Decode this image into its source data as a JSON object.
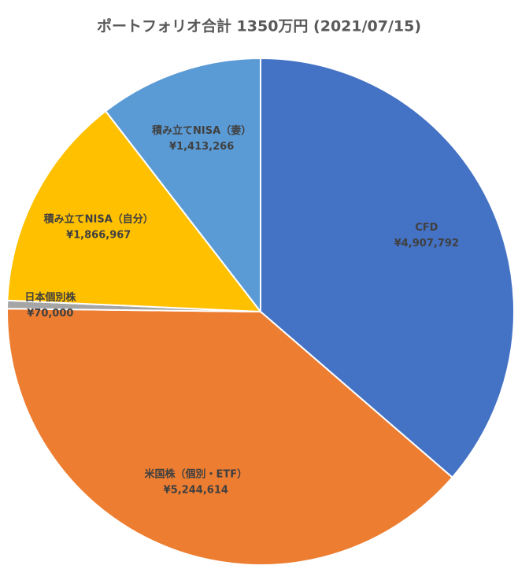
{
  "chart_data": {
    "type": "pie",
    "title": "ポートフォリオ合計 1350万円 (2021/07/15)",
    "categories": [
      "CFD",
      "米国株（個別・ETF）",
      "日本個別株",
      "積み立てNISA（自分）",
      "積み立てNISA（妻）"
    ],
    "values": [
      4907792,
      5244614,
      70000,
      1866967,
      1413266
    ],
    "value_labels": [
      "¥4,907,792",
      "¥5,244,614",
      "¥70,000",
      "¥1,866,967",
      "¥1,413,266"
    ],
    "colors": [
      "#4472c4",
      "#ed7d31",
      "#a5a5a5",
      "#ffc000",
      "#5b9bd5"
    ]
  }
}
